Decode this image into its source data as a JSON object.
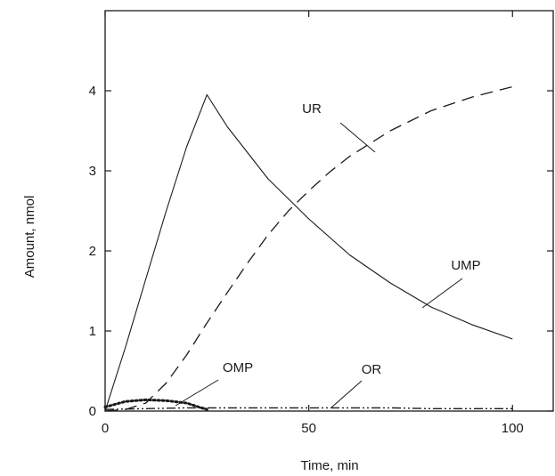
{
  "chart_data": {
    "type": "line",
    "title": "",
    "xlabel": "Time, min",
    "ylabel": "Amount, nmol",
    "xlim": [
      0,
      110
    ],
    "ylim": [
      0,
      5
    ],
    "xticks": [
      0,
      50,
      100
    ],
    "yticks": [
      0,
      1,
      2,
      3,
      4
    ],
    "grid": false,
    "legend": "none (series labeled directly on the curves)",
    "series": [
      {
        "name": "UMP",
        "style": "solid",
        "x": [
          0,
          5,
          10,
          15,
          20,
          25,
          30,
          40,
          50,
          60,
          70,
          80,
          90,
          100
        ],
        "y": [
          0,
          0.8,
          1.65,
          2.5,
          3.3,
          3.95,
          3.55,
          2.9,
          2.4,
          1.95,
          1.6,
          1.3,
          1.08,
          0.9
        ]
      },
      {
        "name": "UR",
        "style": "dashed",
        "x": [
          0,
          5,
          10,
          15,
          20,
          25,
          30,
          35,
          40,
          45,
          50,
          55,
          60,
          70,
          80,
          90,
          100
        ],
        "y": [
          0,
          0.02,
          0.1,
          0.35,
          0.7,
          1.1,
          1.48,
          1.85,
          2.2,
          2.5,
          2.75,
          2.98,
          3.18,
          3.5,
          3.75,
          3.92,
          4.05
        ]
      },
      {
        "name": "OMP",
        "style": "dotted",
        "x": [
          0,
          5,
          10,
          15,
          20,
          23,
          25
        ],
        "y": [
          0.05,
          0.12,
          0.14,
          0.13,
          0.1,
          0.05,
          0.02
        ]
      },
      {
        "name": "OR",
        "style": "dash-dot-dot",
        "x": [
          0,
          10,
          20,
          30,
          40,
          50,
          60,
          70,
          80,
          90,
          100
        ],
        "y": [
          0.02,
          0.03,
          0.04,
          0.04,
          0.04,
          0.04,
          0.04,
          0.04,
          0.03,
          0.03,
          0.03
        ]
      }
    ],
    "annotations": [
      {
        "text": "UR",
        "series": "UR"
      },
      {
        "text": "UMP",
        "series": "UMP"
      },
      {
        "text": "OMP",
        "series": "OMP"
      },
      {
        "text": "OR",
        "series": "OR"
      }
    ]
  }
}
